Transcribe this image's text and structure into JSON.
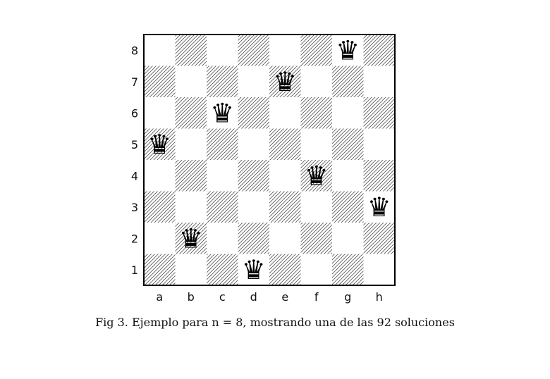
{
  "board": {
    "files": [
      "a",
      "b",
      "c",
      "d",
      "e",
      "f",
      "g",
      "h"
    ],
    "ranks": [
      "1",
      "2",
      "3",
      "4",
      "5",
      "6",
      "7",
      "8"
    ],
    "dark_square_style": "diagonal-hatch",
    "queen_glyph": "♛",
    "queens": [
      {
        "square": "a5",
        "file": "a",
        "rank": 5
      },
      {
        "square": "b2",
        "file": "b",
        "rank": 2
      },
      {
        "square": "c6",
        "file": "c",
        "rank": 6
      },
      {
        "square": "d1",
        "file": "d",
        "rank": 1
      },
      {
        "square": "e7",
        "file": "e",
        "rank": 7
      },
      {
        "square": "f4",
        "file": "f",
        "rank": 4
      },
      {
        "square": "g8",
        "file": "g",
        "rank": 8
      },
      {
        "square": "h3",
        "file": "h",
        "rank": 3
      }
    ]
  },
  "caption": "Fig 3. Ejemplo para n = 8, mostrando una de las 92 soluciones"
}
